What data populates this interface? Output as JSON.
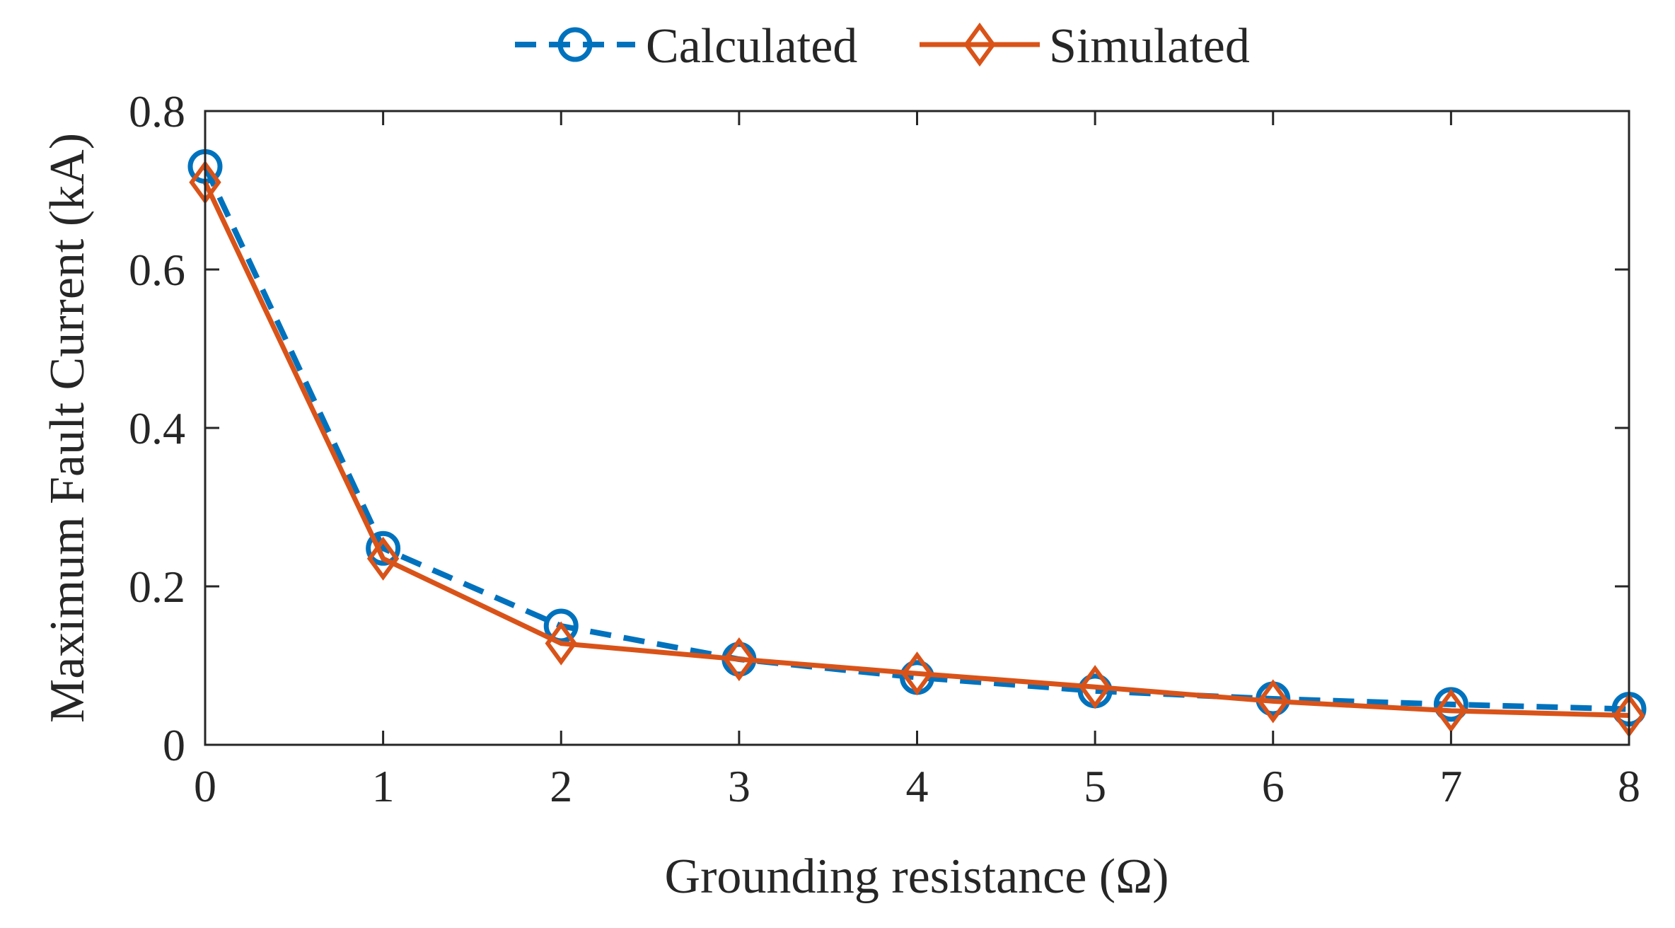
{
  "chart_data": {
    "type": "line",
    "title": "",
    "xlabel": "Grounding resistance (Ω)",
    "ylabel": "Maximum Fault Current (kA)",
    "xlim": [
      0,
      8
    ],
    "ylim": [
      0,
      0.8
    ],
    "x_ticks": [
      0,
      1,
      2,
      3,
      4,
      5,
      6,
      7,
      8
    ],
    "x_tick_labels": [
      "0",
      "1",
      "2",
      "3",
      "4",
      "5",
      "6",
      "7",
      "8"
    ],
    "y_ticks": [
      0,
      0.2,
      0.4,
      0.6,
      0.8
    ],
    "y_tick_labels": [
      "0",
      "0.2",
      "0.4",
      "0.6",
      "0.8"
    ],
    "grid": false,
    "legend_position": "top-center",
    "x": [
      0,
      1,
      2,
      3,
      4,
      5,
      6,
      7,
      8
    ],
    "series": [
      {
        "name": "Calculated",
        "values": [
          0.73,
          0.248,
          0.15,
          0.108,
          0.085,
          0.068,
          0.058,
          0.051,
          0.045
        ],
        "color": "#0072BD",
        "line_style": "dashed",
        "marker": "circle"
      },
      {
        "name": "Simulated",
        "values": [
          0.71,
          0.235,
          0.128,
          0.108,
          0.09,
          0.073,
          0.055,
          0.043,
          0.037
        ],
        "color": "#D95319",
        "line_style": "solid",
        "marker": "diamond"
      }
    ]
  }
}
